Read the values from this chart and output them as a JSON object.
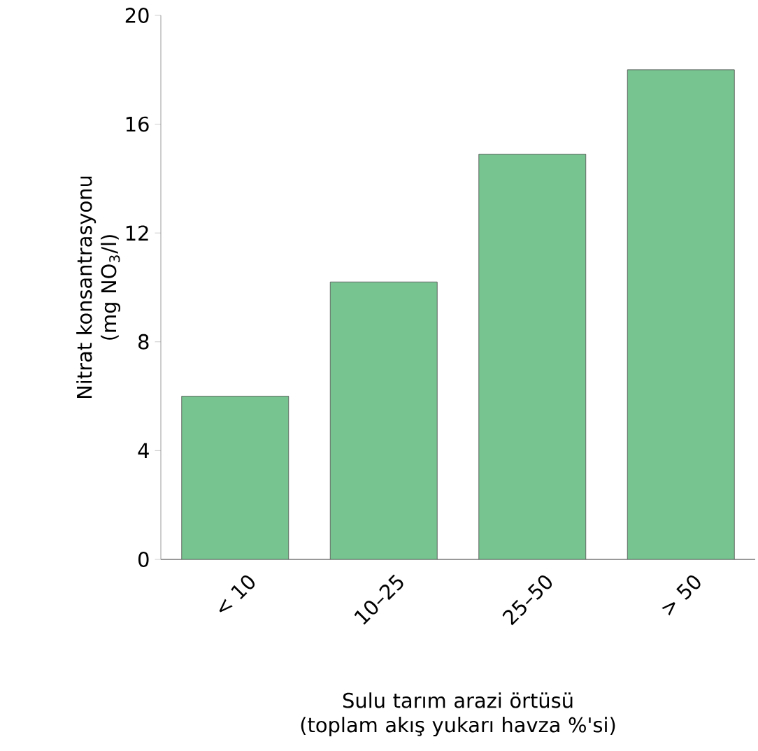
{
  "chart_data": {
    "type": "bar",
    "xlabel": "Sulu tarım arazi örtüsü (toplam akış yukarı havza %'si)",
    "ylabel": "Nitrat konsantrasyonu (mg NO$_{3}$/l)",
    "categories": [
      "< 10",
      "10–25",
      "25–50",
      "> 50"
    ],
    "values": [
      6.0,
      10.2,
      14.9,
      18.0
    ],
    "color": "#77c490",
    "ylim": [
      0,
      20
    ],
    "yticks": [
      0,
      4,
      8,
      12,
      16,
      20
    ]
  }
}
